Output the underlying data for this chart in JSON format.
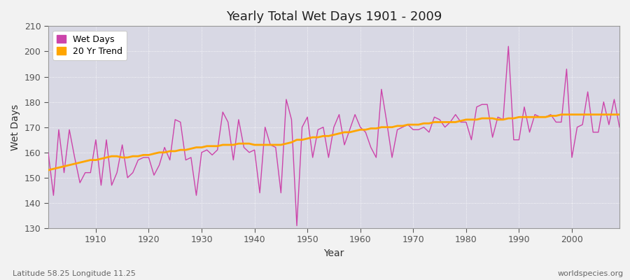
{
  "title": "Yearly Total Wet Days 1901 - 2009",
  "xlabel": "Year",
  "ylabel": "Wet Days",
  "subtitle_left": "Latitude 58.25 Longitude 11.25",
  "subtitle_right": "worldspecies.org",
  "ylim": [
    130,
    210
  ],
  "yticks": [
    130,
    140,
    150,
    160,
    170,
    180,
    190,
    200,
    210
  ],
  "wet_days_color": "#CC44AA",
  "trend_color": "#FFA500",
  "plot_bg_color": "#DCDCE8",
  "fig_bg_color": "#F0F0F0",
  "legend_wet": "Wet Days",
  "legend_trend": "20 Yr Trend",
  "wet_days": {
    "1901": 160,
    "1902": 143,
    "1903": 169,
    "1904": 152,
    "1905": 169,
    "1906": 158,
    "1907": 148,
    "1908": 152,
    "1909": 152,
    "1910": 165,
    "1911": 147,
    "1912": 165,
    "1913": 147,
    "1914": 152,
    "1915": 163,
    "1916": 150,
    "1917": 152,
    "1918": 157,
    "1919": 158,
    "1920": 158,
    "1921": 151,
    "1922": 155,
    "1923": 162,
    "1924": 157,
    "1925": 173,
    "1926": 172,
    "1927": 157,
    "1928": 158,
    "1929": 143,
    "1930": 160,
    "1931": 161,
    "1932": 159,
    "1933": 161,
    "1934": 176,
    "1935": 172,
    "1936": 157,
    "1937": 173,
    "1938": 162,
    "1939": 160,
    "1940": 161,
    "1941": 144,
    "1942": 170,
    "1943": 163,
    "1944": 162,
    "1945": 144,
    "1946": 181,
    "1947": 173,
    "1948": 131,
    "1949": 170,
    "1950": 174,
    "1951": 158,
    "1952": 169,
    "1953": 170,
    "1954": 158,
    "1955": 170,
    "1956": 175,
    "1957": 163,
    "1958": 169,
    "1959": 175,
    "1960": 170,
    "1961": 168,
    "1962": 162,
    "1963": 158,
    "1964": 185,
    "1965": 172,
    "1966": 158,
    "1967": 169,
    "1968": 170,
    "1969": 171,
    "1970": 169,
    "1971": 169,
    "1972": 170,
    "1973": 168,
    "1974": 174,
    "1975": 173,
    "1976": 170,
    "1977": 172,
    "1978": 175,
    "1979": 172,
    "1980": 172,
    "1981": 165,
    "1982": 178,
    "1983": 179,
    "1984": 179,
    "1985": 166,
    "1986": 174,
    "1987": 173,
    "1988": 202,
    "1989": 165,
    "1990": 165,
    "1991": 178,
    "1992": 168,
    "1993": 175,
    "1994": 174,
    "1995": 174,
    "1996": 175,
    "1997": 172,
    "1998": 172,
    "1999": 193,
    "2000": 158,
    "2001": 170,
    "2002": 171,
    "2003": 184,
    "2004": 168,
    "2005": 168,
    "2006": 180,
    "2007": 171,
    "2008": 181,
    "2009": 170
  },
  "trend": {
    "1901": 153,
    "1902": 153.5,
    "1903": 154,
    "1904": 154.5,
    "1905": 155,
    "1906": 155.5,
    "1907": 156,
    "1908": 156.5,
    "1909": 157,
    "1910": 157,
    "1911": 157.5,
    "1912": 158,
    "1913": 158.5,
    "1914": 158.5,
    "1915": 158,
    "1916": 158,
    "1917": 158.5,
    "1918": 158.5,
    "1919": 159,
    "1920": 159,
    "1921": 159.5,
    "1922": 160,
    "1923": 160,
    "1924": 160.5,
    "1925": 160.5,
    "1926": 161,
    "1927": 161,
    "1928": 161.5,
    "1929": 162,
    "1930": 162,
    "1931": 162.5,
    "1932": 162.5,
    "1933": 162.5,
    "1934": 163,
    "1935": 163,
    "1936": 163,
    "1937": 163.5,
    "1938": 163.5,
    "1939": 163.5,
    "1940": 163,
    "1941": 163,
    "1942": 163,
    "1943": 163,
    "1944": 163,
    "1945": 163,
    "1946": 163.5,
    "1947": 164,
    "1948": 165,
    "1949": 165,
    "1950": 165.5,
    "1951": 166,
    "1952": 166,
    "1953": 166.5,
    "1954": 166.5,
    "1955": 167,
    "1956": 167.5,
    "1957": 168,
    "1958": 168,
    "1959": 168.5,
    "1960": 169,
    "1961": 169,
    "1962": 169.5,
    "1963": 169.5,
    "1964": 170,
    "1965": 170,
    "1966": 170,
    "1967": 170.5,
    "1968": 170.5,
    "1969": 171,
    "1970": 171,
    "1971": 171,
    "1972": 171.5,
    "1973": 171.5,
    "1974": 172,
    "1975": 172,
    "1976": 172,
    "1977": 172,
    "1978": 172,
    "1979": 172.5,
    "1980": 173,
    "1981": 173,
    "1982": 173,
    "1983": 173.5,
    "1984": 173.5,
    "1985": 173.5,
    "1986": 173,
    "1987": 173,
    "1988": 173.5,
    "1989": 173.5,
    "1990": 174,
    "1991": 174,
    "1992": 174,
    "1993": 174,
    "1994": 174,
    "1995": 174,
    "1996": 174.5,
    "1997": 174.5,
    "1998": 175,
    "1999": 175,
    "2000": 175,
    "2001": 175,
    "2002": 175,
    "2003": 175,
    "2004": 175,
    "2005": 175,
    "2006": 175,
    "2007": 175,
    "2008": 175,
    "2009": 175
  }
}
